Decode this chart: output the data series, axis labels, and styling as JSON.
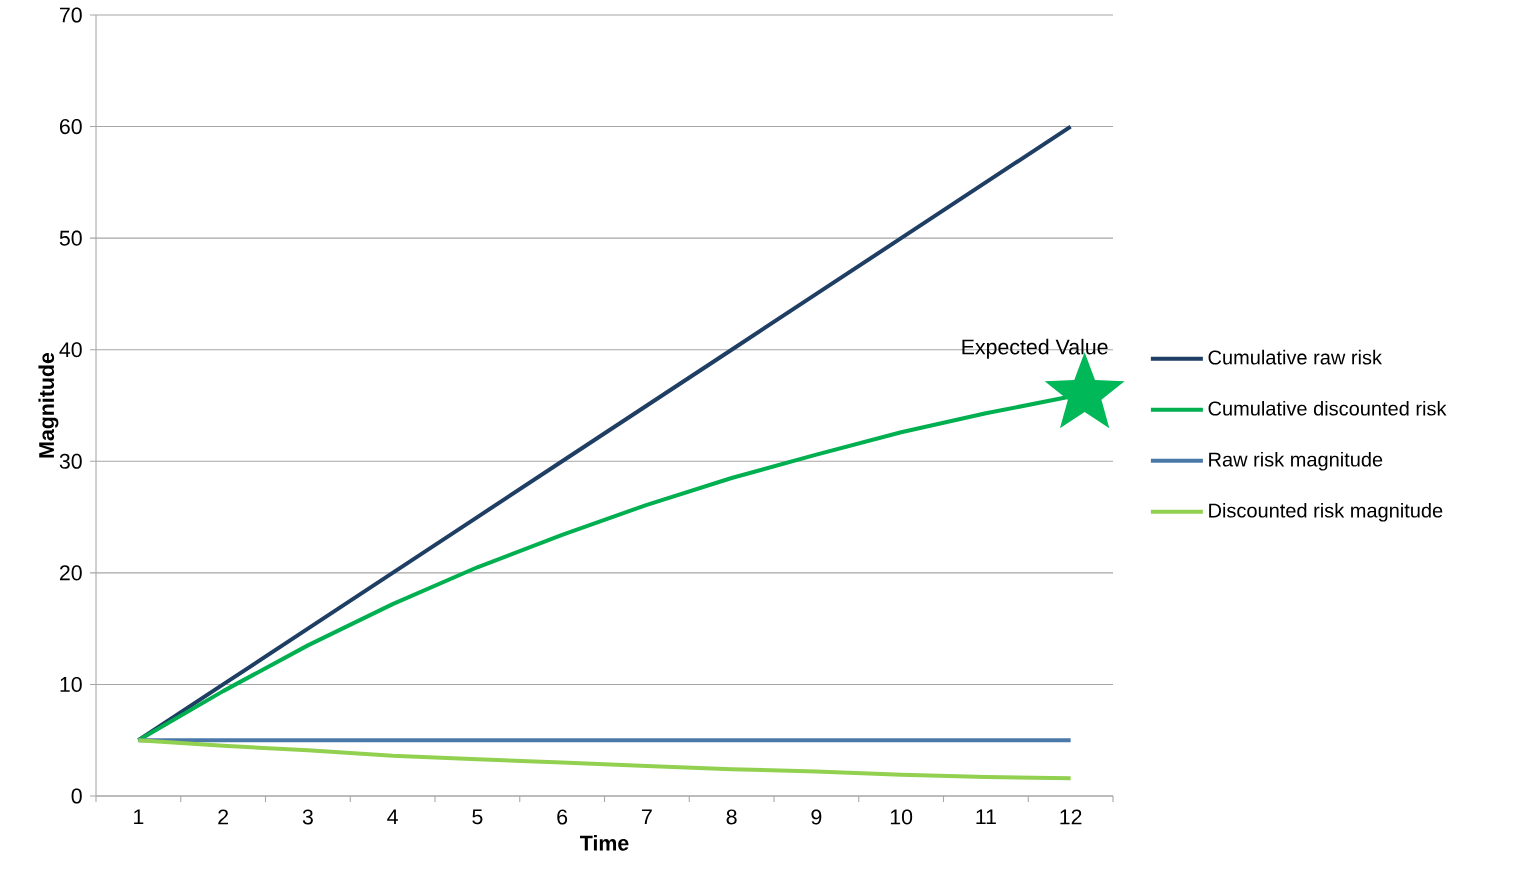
{
  "chart_data": {
    "type": "line",
    "xlabel": "Time",
    "ylabel": "Magnitude",
    "categories": [
      "1",
      "2",
      "3",
      "4",
      "5",
      "6",
      "7",
      "8",
      "9",
      "10",
      "11",
      "12"
    ],
    "series": [
      {
        "name": "Cumulative raw risk",
        "color": "#1f3e64",
        "values": [
          5,
          10,
          15,
          20,
          25,
          30,
          35,
          40,
          45,
          50,
          55,
          60
        ]
      },
      {
        "name": "Cumulative discounted risk",
        "color": "#00b050",
        "values": [
          5,
          9.4,
          13.5,
          17.2,
          20.5,
          23.4,
          26.1,
          28.5,
          30.6,
          32.6,
          34.3,
          35.8
        ]
      },
      {
        "name": "Raw risk magnitude",
        "color": "#4a78a8",
        "values": [
          5,
          5,
          5,
          5,
          5,
          5,
          5,
          5,
          5,
          5,
          5,
          5
        ]
      },
      {
        "name": "Discounted risk magnitude",
        "color": "#92d050",
        "values": [
          5,
          4.5,
          4.1,
          3.6,
          3.3,
          3.0,
          2.7,
          2.4,
          2.2,
          1.9,
          1.7,
          1.6
        ]
      },
      {
        "type": "scatter",
        "marker": "star",
        "color": "#00b858",
        "x": [
          "12"
        ],
        "values": [
          36
        ]
      }
    ],
    "ylim": [
      0,
      70
    ],
    "yticks": [
      0,
      10,
      20,
      30,
      40,
      50,
      60,
      70
    ],
    "grid": "y",
    "legend": "right",
    "line_style": "solid",
    "annotations": [
      {
        "text": "Expected Value",
        "x": "12",
        "y": 36
      }
    ]
  }
}
